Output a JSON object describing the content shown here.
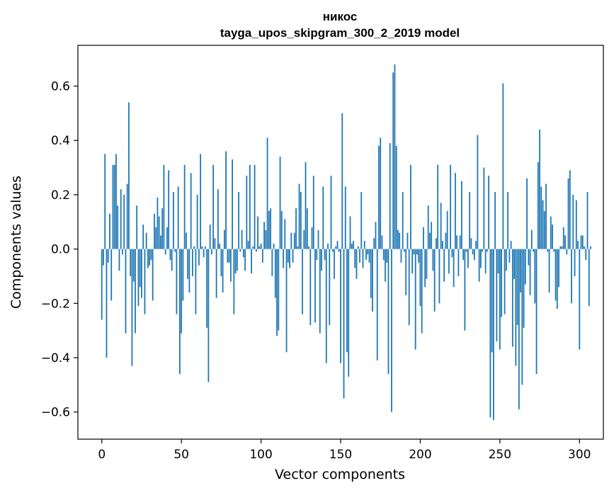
{
  "chart_data": {
    "type": "bar",
    "title_lines": [
      "никос",
      "tayga_upos_skipgram_300_2_2019 model"
    ],
    "xlabel": "Vector components",
    "ylabel": "Components values",
    "xlim": [
      -15,
      315
    ],
    "ylim": [
      -0.7,
      0.75
    ],
    "x_ticks": [
      0,
      50,
      100,
      150,
      200,
      250,
      300
    ],
    "x_tick_labels": [
      "0",
      "50",
      "100",
      "150",
      "200",
      "250",
      "300"
    ],
    "y_ticks": [
      -0.6,
      -0.4,
      -0.2,
      0.0,
      0.2,
      0.4,
      0.6
    ],
    "y_tick_labels": [
      "−0.6",
      "−0.4",
      "−0.2",
      "0.0",
      "0.2",
      "0.4",
      "0.6"
    ],
    "grid": false,
    "bar_color": "#1f77b4",
    "values": [
      -0.26,
      -0.06,
      0.35,
      -0.4,
      -0.05,
      0.13,
      -0.19,
      0.31,
      0.31,
      0.35,
      0.16,
      -0.08,
      0.22,
      -0.02,
      0.2,
      -0.31,
      0.24,
      0.54,
      -0.1,
      -0.43,
      -0.12,
      -0.31,
      0.16,
      -0.21,
      -0.14,
      -0.18,
      0.09,
      -0.24,
      0.06,
      -0.07,
      -0.06,
      -0.04,
      -0.19,
      0.13,
      0.08,
      0.19,
      0.12,
      0.05,
      0.15,
      0.31,
      -0.02,
      0.08,
      0.29,
      -0.04,
      -0.08,
      0.21,
      -0.01,
      -0.24,
      0.23,
      -0.46,
      -0.31,
      -0.19,
      0.31,
      0.06,
      -0.11,
      -0.16,
      0.28,
      -0.1,
      0.01,
      -0.24,
      0.2,
      -0.06,
      0.35,
      0.01,
      -0.03,
      0.01,
      -0.29,
      -0.49,
      0.09,
      -0.02,
      0.31,
      0.04,
      -0.18,
      0.22,
      0.02,
      -0.1,
      -0.16,
      0.07,
      0.36,
      -0.05,
      -0.05,
      -0.12,
      0.33,
      -0.24,
      -0.09,
      -0.08,
      0.21,
      -0.01,
      0.07,
      -0.03,
      -0.08,
      0.27,
      0.03,
      0.31,
      -0.09,
      0.01,
      0.31,
      -0.01,
      0.12,
      0.01,
      0.02,
      -0.05,
      0.1,
      0.07,
      0.41,
      0.14,
      0.15,
      -0.1,
      0.02,
      -0.18,
      -0.32,
      -0.3,
      0.34,
      0.14,
      -0.07,
      0.11,
      -0.38,
      -0.05,
      -0.07,
      0.06,
      -0.05,
      0.06,
      0.15,
      0.01,
      0.24,
      0.21,
      -0.24,
      0.07,
      0.32,
      0.15,
      0.01,
      -0.28,
      0.08,
      0.27,
      -0.27,
      -0.04,
      0.07,
      -0.31,
      -0.08,
      0.23,
      -0.04,
      -0.42,
      0.02,
      -0.28,
      0.27,
      -0.01,
      -0.11,
      0.01,
      0.03,
      -0.01,
      -0.42,
      0.5,
      -0.55,
      0.23,
      -0.38,
      -0.47,
      0.12,
      0.02,
      0.03,
      -0.07,
      -0.11,
      0.01,
      -0.05,
      0.21,
      -0.07,
      0.03,
      -0.04,
      -0.02,
      -0.05,
      -0.18,
      -0.23,
      0.04,
      0.1,
      -0.41,
      0.38,
      0.41,
      0.05,
      -0.04,
      -0.12,
      -0.05,
      -0.46,
      0.39,
      -0.6,
      0.65,
      0.68,
      0.38,
      0.07,
      0.06,
      -0.05,
      0.21,
      -0.01,
      -0.17,
      0.06,
      -0.28,
      0.31,
      -0.09,
      -0.02,
      -0.37,
      -0.02,
      -0.05,
      -0.21,
      -0.31,
      0.08,
      -0.14,
      -0.11,
      0.16,
      0.06,
      0.1,
      -0.08,
      -0.23,
      0.04,
      0.31,
      -0.2,
      0.17,
      0.03,
      -0.12,
      0.06,
      0.14,
      -0.09,
      0.31,
      -0.03,
      -0.14,
      0.28,
      0.05,
      -0.1,
      0.05,
      0.25,
      -0.04,
      -0.3,
      -0.01,
      -0.07,
      0.21,
      0.04,
      -0.02,
      -0.04,
      0.03,
      0.42,
      -0.12,
      -0.07,
      -0.01,
      0.3,
      -0.09,
      -0.01,
      0.27,
      -0.62,
      -0.38,
      -0.63,
      0.21,
      -0.34,
      -0.09,
      -0.37,
      -0.25,
      0.61,
      -0.24,
      -0.08,
      0.21,
      -0.05,
      0.03,
      -0.36,
      -0.11,
      -0.43,
      -0.28,
      -0.59,
      -0.16,
      -0.5,
      -0.29,
      -0.13,
      0.26,
      -0.06,
      -0.17,
      0.07,
      -0.01,
      -0.2,
      -0.46,
      0.32,
      0.44,
      0.23,
      0.18,
      0.14,
      0.24,
      -0.01,
      -0.16,
      0.12,
      0.09,
      -0.01,
      -0.19,
      -0.22,
      -0.14,
      0.01,
      0.01,
      0.08,
      0.05,
      -0.02,
      0.26,
      0.29,
      -0.2,
      0.2,
      -0.1,
      0.18,
      0.03,
      -0.37,
      0.05,
      0.05,
      0.01,
      -0.04,
      0.21,
      -0.21,
      0.01
    ]
  }
}
